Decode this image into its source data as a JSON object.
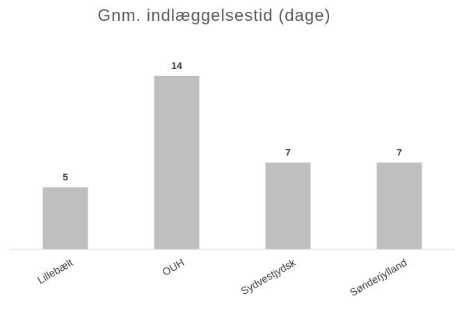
{
  "chart_data": {
    "type": "bar",
    "title": "Gnm. indlæggelsestid  (dage)",
    "categories": [
      "Lillebælt",
      "OUH",
      "Sydvestjydsk",
      "Sønderjylland"
    ],
    "values": [
      5,
      14,
      7,
      7
    ],
    "xlabel": "",
    "ylabel": "",
    "ylim": [
      0,
      14.5
    ],
    "grid": false,
    "legend": "none",
    "colors": {
      "bar": "#bfbfbf",
      "axis": "#d9d9d9",
      "label": "#404040",
      "title": "#595959"
    }
  }
}
